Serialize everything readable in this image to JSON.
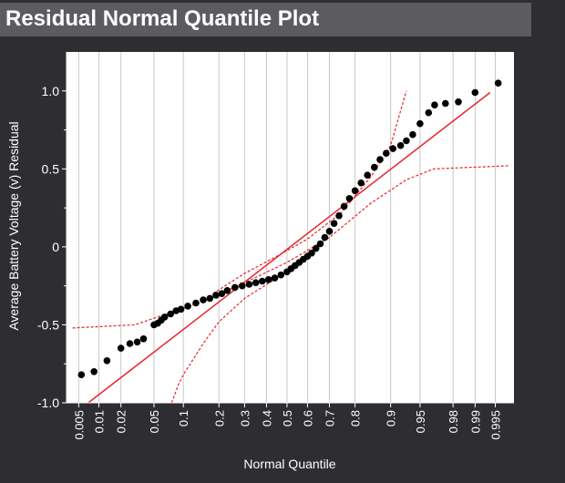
{
  "panel": {
    "title": "Residual Normal Quantile Plot"
  },
  "chart_data": {
    "type": "scatter",
    "title": "",
    "xlabel": "Normal Quantile",
    "ylabel": "Average Battery Voltage (v) Residual",
    "x_scale": "normal-probability",
    "ylim": [
      -1.0,
      1.25
    ],
    "y_ticks": [
      {
        "value": -1.0,
        "label": "-1.0"
      },
      {
        "value": -0.5,
        "label": "-0.5"
      },
      {
        "value": 0,
        "label": "0"
      },
      {
        "value": 0.5,
        "label": "0.5"
      },
      {
        "value": 1.0,
        "label": "1.0"
      }
    ],
    "x_ticks": [
      {
        "value": 0.005,
        "label": "0.005"
      },
      {
        "value": 0.01,
        "label": "0.01"
      },
      {
        "value": 0.02,
        "label": "0.02"
      },
      {
        "value": 0.05,
        "label": "0.05"
      },
      {
        "value": 0.1,
        "label": "0.1"
      },
      {
        "value": 0.2,
        "label": "0.2"
      },
      {
        "value": 0.3,
        "label": "0.3"
      },
      {
        "value": 0.4,
        "label": "0.4"
      },
      {
        "value": 0.5,
        "label": "0.5"
      },
      {
        "value": 0.6,
        "label": "0.6"
      },
      {
        "value": 0.7,
        "label": "0.7"
      },
      {
        "value": 0.8,
        "label": "0.8"
      },
      {
        "value": 0.9,
        "label": "0.9"
      },
      {
        "value": 0.95,
        "label": "0.95"
      },
      {
        "value": 0.98,
        "label": "0.98"
      },
      {
        "value": 0.99,
        "label": "0.99"
      },
      {
        "value": 0.995,
        "label": "0.995"
      }
    ],
    "grid": "vertical",
    "colors": {
      "points": "#000000",
      "fit_line": "#e8242b",
      "confidence_band": "#e8242b",
      "plot_background": "#ffffff",
      "grid": "#c8c8c8",
      "page_background": "#2e2e32"
    },
    "fit_line": {
      "x": [
        0.007,
        0.994
      ],
      "y": [
        -1.0,
        0.99
      ]
    },
    "confidence_band": {
      "lower": [
        {
          "x": 0.004,
          "y": -0.52
        },
        {
          "x": 0.03,
          "y": -0.5
        },
        {
          "x": 0.15,
          "y": -0.35
        },
        {
          "x": 0.3,
          "y": -0.23
        },
        {
          "x": 0.5,
          "y": -0.1
        },
        {
          "x": 0.7,
          "y": 0.06
        },
        {
          "x": 0.85,
          "y": 0.28
        },
        {
          "x": 0.93,
          "y": 0.43
        },
        {
          "x": 0.965,
          "y": 0.5
        },
        {
          "x": 0.997,
          "y": 0.52
        }
      ],
      "lower_tail": [
        {
          "x": 0.077,
          "y": -1.0
        },
        {
          "x": 0.09,
          "y": -0.88
        },
        {
          "x": 0.1,
          "y": -0.82
        },
        {
          "x": 0.15,
          "y": -0.62
        },
        {
          "x": 0.2,
          "y": -0.48
        },
        {
          "x": 0.3,
          "y": -0.33
        },
        {
          "x": 0.45,
          "y": -0.2
        },
        {
          "x": 0.6,
          "y": -0.07
        }
      ],
      "upper": [
        {
          "x": 0.18,
          "y": -0.3
        },
        {
          "x": 0.3,
          "y": -0.17
        },
        {
          "x": 0.45,
          "y": -0.06
        },
        {
          "x": 0.6,
          "y": 0.05
        },
        {
          "x": 0.75,
          "y": 0.22
        },
        {
          "x": 0.85,
          "y": 0.45
        },
        {
          "x": 0.9,
          "y": 0.65
        },
        {
          "x": 0.93,
          "y": 1.0
        }
      ]
    },
    "points": [
      {
        "x": 0.0055,
        "y": -0.82
      },
      {
        "x": 0.0085,
        "y": -0.8
      },
      {
        "x": 0.013,
        "y": -0.73
      },
      {
        "x": 0.02,
        "y": -0.65
      },
      {
        "x": 0.026,
        "y": -0.62
      },
      {
        "x": 0.032,
        "y": -0.61
      },
      {
        "x": 0.038,
        "y": -0.59
      },
      {
        "x": 0.05,
        "y": -0.5
      },
      {
        "x": 0.055,
        "y": -0.49
      },
      {
        "x": 0.06,
        "y": -0.47
      },
      {
        "x": 0.065,
        "y": -0.45
      },
      {
        "x": 0.075,
        "y": -0.43
      },
      {
        "x": 0.085,
        "y": -0.41
      },
      {
        "x": 0.095,
        "y": -0.4
      },
      {
        "x": 0.11,
        "y": -0.38
      },
      {
        "x": 0.13,
        "y": -0.36
      },
      {
        "x": 0.15,
        "y": -0.34
      },
      {
        "x": 0.17,
        "y": -0.33
      },
      {
        "x": 0.19,
        "y": -0.31
      },
      {
        "x": 0.21,
        "y": -0.3
      },
      {
        "x": 0.23,
        "y": -0.28
      },
      {
        "x": 0.26,
        "y": -0.26
      },
      {
        "x": 0.29,
        "y": -0.25
      },
      {
        "x": 0.32,
        "y": -0.24
      },
      {
        "x": 0.35,
        "y": -0.23
      },
      {
        "x": 0.38,
        "y": -0.22
      },
      {
        "x": 0.41,
        "y": -0.21
      },
      {
        "x": 0.44,
        "y": -0.2
      },
      {
        "x": 0.47,
        "y": -0.18
      },
      {
        "x": 0.5,
        "y": -0.16
      },
      {
        "x": 0.52,
        "y": -0.14
      },
      {
        "x": 0.54,
        "y": -0.12
      },
      {
        "x": 0.56,
        "y": -0.1
      },
      {
        "x": 0.58,
        "y": -0.08
      },
      {
        "x": 0.6,
        "y": -0.06
      },
      {
        "x": 0.62,
        "y": -0.04
      },
      {
        "x": 0.64,
        "y": -0.01
      },
      {
        "x": 0.66,
        "y": 0.02
      },
      {
        "x": 0.68,
        "y": 0.06
      },
      {
        "x": 0.7,
        "y": 0.1
      },
      {
        "x": 0.72,
        "y": 0.15
      },
      {
        "x": 0.74,
        "y": 0.2
      },
      {
        "x": 0.76,
        "y": 0.26
      },
      {
        "x": 0.78,
        "y": 0.31
      },
      {
        "x": 0.8,
        "y": 0.36
      },
      {
        "x": 0.82,
        "y": 0.41
      },
      {
        "x": 0.84,
        "y": 0.46
      },
      {
        "x": 0.86,
        "y": 0.51
      },
      {
        "x": 0.875,
        "y": 0.56
      },
      {
        "x": 0.89,
        "y": 0.6
      },
      {
        "x": 0.905,
        "y": 0.63
      },
      {
        "x": 0.92,
        "y": 0.65
      },
      {
        "x": 0.93,
        "y": 0.68
      },
      {
        "x": 0.94,
        "y": 0.72
      },
      {
        "x": 0.95,
        "y": 0.79
      },
      {
        "x": 0.96,
        "y": 0.86
      },
      {
        "x": 0.966,
        "y": 0.91
      },
      {
        "x": 0.975,
        "y": 0.92
      },
      {
        "x": 0.983,
        "y": 0.93
      },
      {
        "x": 0.99,
        "y": 0.99
      },
      {
        "x": 0.9955,
        "y": 1.05
      }
    ]
  }
}
